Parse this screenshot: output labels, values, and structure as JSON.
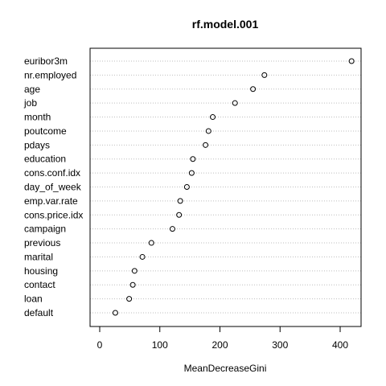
{
  "chart_data": {
    "type": "scatter",
    "title": "rf.model.001",
    "xlabel": "MeanDecreaseGini",
    "ylabel": "",
    "xlim": [
      -15,
      440
    ],
    "xticks": [
      0,
      100,
      200,
      300,
      400
    ],
    "grid": "horizontal-dotted",
    "point_style": "open-circle",
    "categories": [
      "euribor3m",
      "nr.employed",
      "age",
      "job",
      "month",
      "poutcome",
      "pdays",
      "education",
      "cons.conf.idx",
      "day_of_week",
      "emp.var.rate",
      "cons.price.idx",
      "campaign",
      "previous",
      "marital",
      "housing",
      "contact",
      "loan",
      "default"
    ],
    "values": [
      419,
      274,
      255,
      225,
      188,
      181,
      176,
      155,
      153,
      145,
      134,
      132,
      121,
      86,
      71,
      58,
      55,
      49,
      26
    ]
  }
}
